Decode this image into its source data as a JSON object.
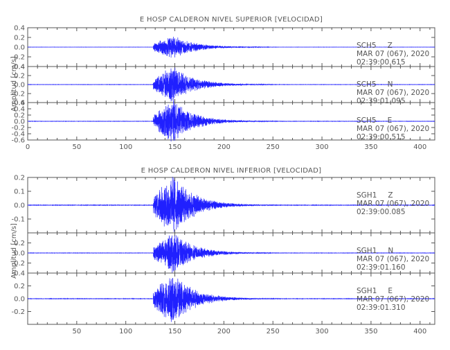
{
  "chart_data": [
    {
      "type": "line",
      "title": "E HOSP CALDERON NIVEL SUPERIOR [VELOCIDAD]",
      "ylabel": "Amplitud [cm/s]",
      "xlim": [
        0,
        415
      ],
      "x_ticks": [
        "0",
        "50",
        "100",
        "150",
        "200",
        "250",
        "300",
        "350",
        "400"
      ],
      "show_x_tick_labels": true,
      "series": [
        {
          "name": "SCH5 Z",
          "station": "SCH5",
          "component": "Z",
          "date": "MAR 07 (067), 2020",
          "time": "02:39:00.615",
          "ylim": [
            -0.4,
            0.4
          ],
          "y_ticks": [
            "0.4",
            "0.2",
            "0.0",
            "-0.2",
            "-0.4"
          ],
          "onset_s": 128,
          "peak_s": 148,
          "peak_amplitude": 0.18
        },
        {
          "name": "SCH5 N",
          "station": "SCH5",
          "component": "N",
          "date": "MAR 07 (067), 2020",
          "time": "02:39:01.095",
          "ylim": [
            -0.4,
            0.4
          ],
          "y_ticks": [
            "0.4",
            "0.2",
            "0.0",
            "-0.2",
            "-0.4"
          ],
          "onset_s": 128,
          "peak_s": 148,
          "peak_amplitude": 0.3
        },
        {
          "name": "SCH5 E",
          "station": "SCH5",
          "component": "E",
          "date": "MAR 07 (067), 2020",
          "time": "02:39:00.515",
          "ylim": [
            -0.6,
            0.6
          ],
          "y_ticks": [
            "0.6",
            "0.4",
            "0.2",
            "0.0",
            "-0.2",
            "-0.4",
            "-0.6"
          ],
          "onset_s": 128,
          "peak_s": 148,
          "peak_amplitude": 0.5
        }
      ]
    },
    {
      "type": "line",
      "title": "E HOSP CALDERON NIVEL INFERIOR [VELOCIDAD]",
      "ylabel": "Amplitud [cm/s]",
      "xlim": [
        0,
        415
      ],
      "x_ticks": [
        "50",
        "100",
        "150",
        "200",
        "250",
        "300",
        "350",
        "400"
      ],
      "show_x_tick_labels": true,
      "series": [
        {
          "name": "SGH1 Z",
          "station": "SGH1",
          "component": "Z",
          "date": "MAR 07 (067), 2020",
          "time": "02:39:00.085",
          "ylim": [
            -0.2,
            0.2
          ],
          "y_ticks": [
            "0.2",
            "0.1",
            "0.0",
            "-0.1"
          ],
          "onset_s": 128,
          "peak_s": 148,
          "peak_amplitude": 0.16
        },
        {
          "name": "SGH1 N",
          "station": "SGH1",
          "component": "N",
          "date": "MAR 07 (067), 2020",
          "time": "02:39:01.160",
          "ylim": [
            -0.4,
            0.4
          ],
          "y_ticks": [
            "0.2",
            "0.0",
            "-0.2",
            "-0.4"
          ],
          "onset_s": 128,
          "peak_s": 148,
          "peak_amplitude": 0.3
        },
        {
          "name": "SGH1 E",
          "station": "SGH1",
          "component": "E",
          "date": "MAR 07 (067), 2020",
          "time": "02:39:01.310",
          "ylim": [
            -0.4,
            0.4
          ],
          "y_ticks": [
            "0.2",
            "0.0",
            "-0.2"
          ],
          "onset_s": 128,
          "peak_s": 148,
          "peak_amplitude": 0.3
        }
      ]
    }
  ],
  "colors": {
    "trace": "#2020ff",
    "axis": "#555555",
    "background": "#ffffff"
  }
}
